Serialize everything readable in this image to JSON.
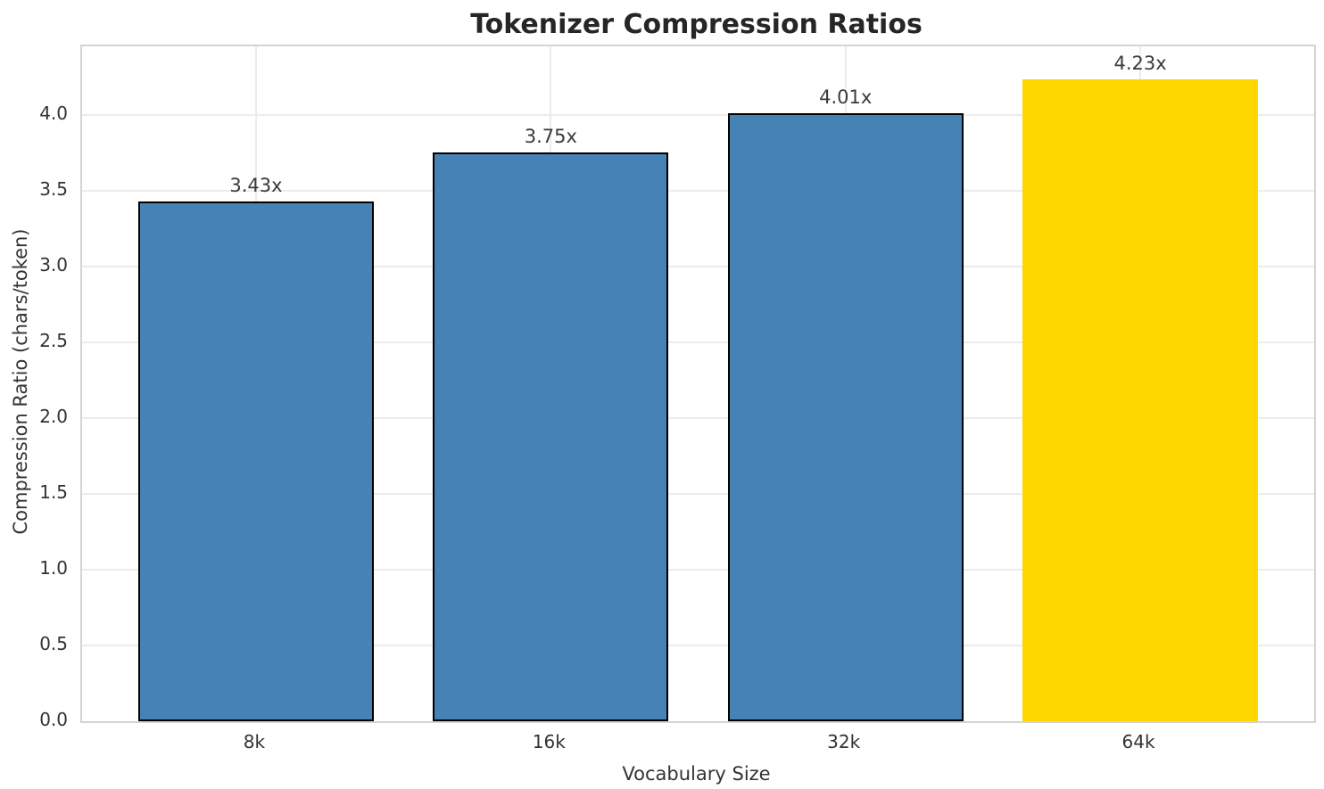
{
  "chart_data": {
    "type": "bar",
    "title": "Tokenizer Compression Ratios",
    "xlabel": "Vocabulary Size",
    "ylabel": "Compression Ratio (chars/token)",
    "categories": [
      "8k",
      "16k",
      "32k",
      "64k"
    ],
    "values": [
      3.43,
      3.75,
      4.01,
      4.23
    ],
    "bar_labels": [
      "3.43x",
      "3.75x",
      "4.01x",
      "4.23x"
    ],
    "bar_colors": [
      "#4682B4",
      "#4682B4",
      "#4682B4",
      "#FFD700"
    ],
    "bar_edge_colors": [
      "#000000",
      "#000000",
      "#000000",
      "none"
    ],
    "ylim": [
      0,
      4.45
    ],
    "yticks": [
      0.0,
      0.5,
      1.0,
      1.5,
      2.0,
      2.5,
      3.0,
      3.5,
      4.0
    ],
    "ytick_labels": [
      "0.0",
      "0.5",
      "1.0",
      "1.5",
      "2.0",
      "2.5",
      "3.0",
      "3.5",
      "4.0"
    ],
    "grid": "both",
    "grid_color": "#ececec",
    "spine_color": "#d4d4d4",
    "accent_color": "#4682B4",
    "highlight_color": "#FFD700",
    "legend": "none"
  }
}
